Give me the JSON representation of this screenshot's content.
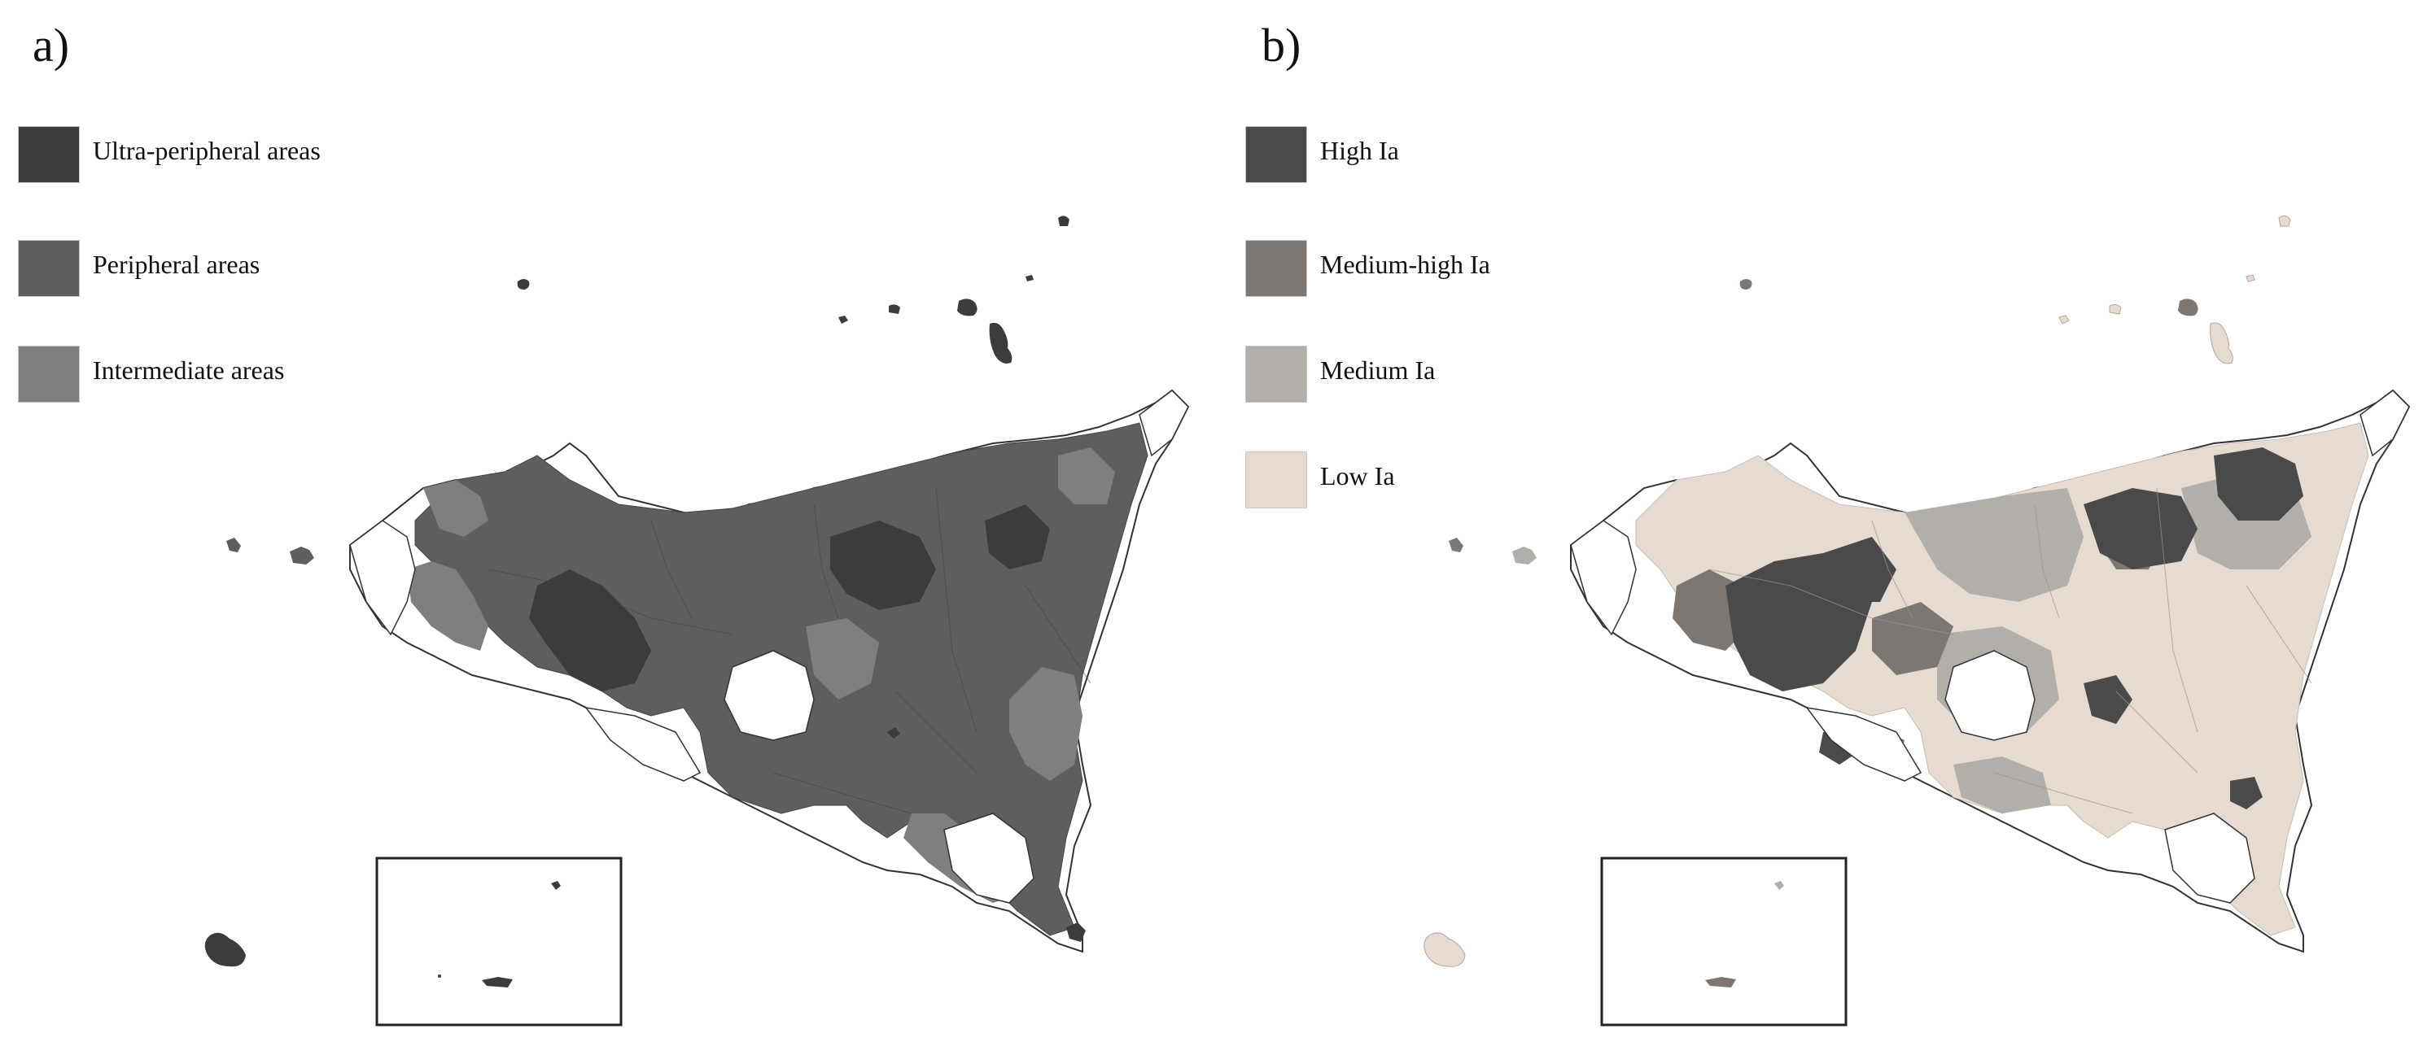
{
  "panels": [
    {
      "label": "a)",
      "legend": [
        {
          "label": "Ultra-peripheral areas",
          "color": "#3c3c3c"
        },
        {
          "label": "Peripheral areas",
          "color": "#5e5e5e"
        },
        {
          "label": "Intermediate areas",
          "color": "#7f7f7f"
        }
      ]
    },
    {
      "label": "b)",
      "legend": [
        {
          "label": "High Ia",
          "color": "#4a4a4a"
        },
        {
          "label": "Medium-high Ia",
          "color": "#7d7773"
        },
        {
          "label": "Medium Ia",
          "color": "#b2aea9"
        },
        {
          "label": "Low Ia",
          "color": "#e6dbd1"
        }
      ]
    }
  ],
  "colors": {
    "outline": "#333333",
    "unclassified": "#ffffff",
    "inset_frame": "#222222"
  }
}
